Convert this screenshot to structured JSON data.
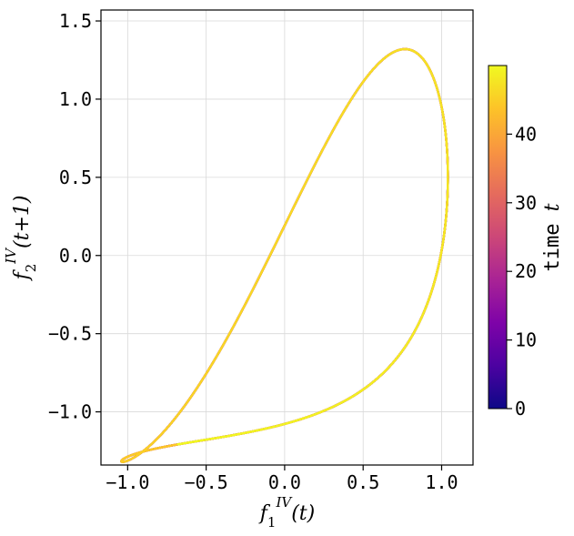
{
  "chart_data": {
    "type": "line",
    "title": "",
    "xlabel": "f_1^{IV}(t)",
    "ylabel": "f_2^{IV}(t+1)",
    "xlim": [
      -1.17,
      1.2
    ],
    "ylim": [
      -1.34,
      1.57
    ],
    "x_ticks": [
      -1.0,
      -0.5,
      0.0,
      0.5,
      1.0
    ],
    "x_tick_labels": [
      "−1.0",
      "−0.5",
      "0.0",
      "0.5",
      "1.0"
    ],
    "y_ticks": [
      -1.0,
      -0.5,
      0.0,
      0.5,
      1.0,
      1.5
    ],
    "y_tick_labels": [
      "−1.0",
      "−0.5",
      "0.0",
      "0.5",
      "1.0",
      "1.5"
    ],
    "grid": true,
    "colormap": "plasma",
    "colorbar": {
      "label": "time t",
      "label_main": "time",
      "label_var": "t",
      "min": 0,
      "max": 50,
      "ticks": [
        0,
        10,
        20,
        30,
        40
      ],
      "tick_labels": [
        "0",
        "10",
        "20",
        "30",
        "40"
      ]
    },
    "series": [
      {
        "curve": "parametric",
        "x_equation": "1.04*sin(1.05*t + 1.62)",
        "y_equation": "1.32*sin(1.05*(t+1) + 0.75*sin(1.05*(t+1)) + 1.62 - 0.50)",
        "t_range": [
          0,
          50
        ]
      }
    ]
  }
}
